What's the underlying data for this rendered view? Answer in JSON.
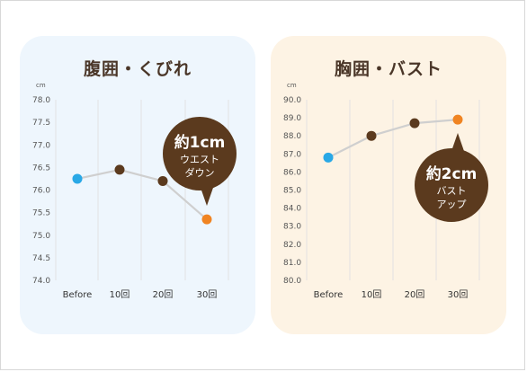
{
  "colors": {
    "dot_before": "#29a8e6",
    "dot_mid": "#5b3a1e",
    "dot_last": "#f08422",
    "line": "#cfcfcf",
    "badge": "#5b3a1e"
  },
  "chart_data": [
    {
      "type": "line",
      "title": "腹囲・くびれ",
      "unit": "cm",
      "categories": [
        "Before",
        "10回",
        "20回",
        "30回"
      ],
      "yticks": [
        "78.0",
        "77.5",
        "77.0",
        "76.5",
        "76.0",
        "75.5",
        "75.0",
        "74.5",
        "74.0"
      ],
      "ylim": [
        74.0,
        78.0
      ],
      "values": [
        76.25,
        76.45,
        76.2,
        75.35
      ],
      "grid": "vertical",
      "badge": {
        "big": "約1cm",
        "line1": "ウエスト",
        "line2": "ダウン"
      }
    },
    {
      "type": "line",
      "title": "胸囲・バスト",
      "unit": "cm",
      "categories": [
        "Before",
        "10回",
        "20回",
        "30回"
      ],
      "yticks": [
        "90.0",
        "89.0",
        "88.0",
        "87.0",
        "86.0",
        "85.0",
        "84.0",
        "83.0",
        "82.0",
        "81.0",
        "80.0"
      ],
      "ylim": [
        80.0,
        90.0
      ],
      "values": [
        86.8,
        88.0,
        88.7,
        88.9
      ],
      "grid": "vertical",
      "badge": {
        "big": "約2cm",
        "line1": "バスト",
        "line2": "アップ"
      }
    }
  ]
}
